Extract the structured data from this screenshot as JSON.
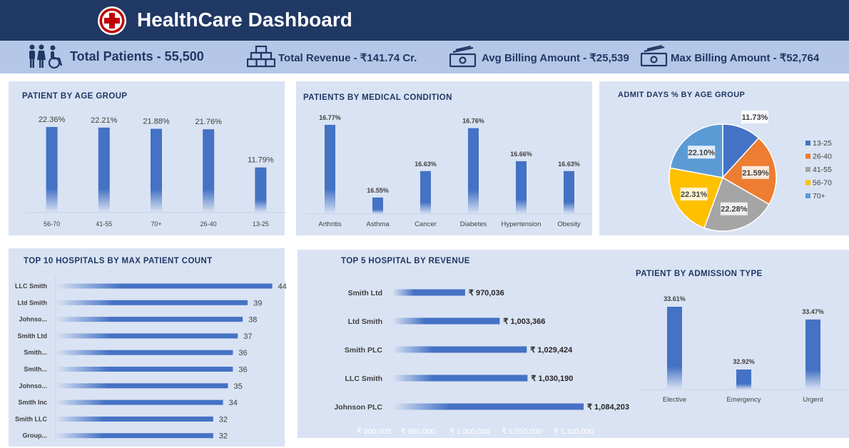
{
  "header": {
    "title": "HealthCare Dashboard",
    "kpis": [
      {
        "icon": "patients-icon",
        "label": "Total Patients  - 55,500"
      },
      {
        "icon": "revenue-icon",
        "label": "Total Revenue   -  ₹141.74 Cr."
      },
      {
        "icon": "billing-icon",
        "label": "Avg Billing Amount - ₹25,539"
      },
      {
        "icon": "max-billing-icon",
        "label": "Max Billing Amount - ₹52,764"
      }
    ]
  },
  "colors": {
    "header": "#1f3864",
    "kpi_band": "#b4c7e7",
    "panel": "#dae3f3",
    "bar": "#4472c4"
  },
  "panels": {
    "age_group": "PATIENT BY AGE GROUP",
    "medical": "PATIENTS BY MEDICAL CONDITION",
    "admit": "ADMIT DAYS % BY AGE GROUP",
    "hospitals": "TOP 10 HOSPITALS BY MAX PATIENT COUNT",
    "revenue": "TOP 5 HOSPITAL BY REVENUE",
    "admission": "PATIENT BY ADMISSION TYPE"
  },
  "chart_data": [
    {
      "id": "age",
      "type": "bar",
      "title": "PATIENT BY AGE GROUP",
      "categories": [
        "56-70",
        "41-55",
        "70+",
        "26-40",
        "13-25"
      ],
      "values": [
        22.36,
        22.21,
        21.88,
        21.76,
        11.79
      ],
      "labels": [
        "22.36%",
        "22.21%",
        "21.88%",
        "21.76%",
        "11.79%"
      ]
    },
    {
      "id": "medical",
      "type": "bar",
      "title": "PATIENTS BY MEDICAL CONDITION",
      "categories": [
        "Arthritis",
        "Asthma",
        "Cancer",
        "Diabetes",
        "Hypertension",
        "Obesity"
      ],
      "values": [
        16.77,
        16.55,
        16.63,
        16.76,
        16.66,
        16.63
      ],
      "labels": [
        "16.77%",
        "16.55%",
        "16.63%",
        "16.76%",
        "16.66%",
        "16.63%"
      ]
    },
    {
      "id": "admit",
      "type": "pie",
      "title": "ADMIT DAYS % BY AGE GROUP",
      "categories": [
        "13-25",
        "26-40",
        "41-55",
        "56-70",
        "70+"
      ],
      "values": [
        11.73,
        21.59,
        22.28,
        22.31,
        22.1
      ],
      "labels": [
        "11.73%",
        "21.59%",
        "22.28%",
        "22.31%",
        "22.10%"
      ],
      "colors": [
        "#4472c4",
        "#ed7d31",
        "#a5a5a5",
        "#ffc000",
        "#5b9bd5"
      ],
      "legend": "right"
    },
    {
      "id": "hospitals",
      "type": "bar",
      "orientation": "horizontal",
      "title": "TOP 10 HOSPITALS BY MAX PATIENT COUNT",
      "categories": [
        "LLC Smith",
        "Ltd Smith",
        "Johnso...",
        "Smith Ltd",
        "Smith...",
        "Smith...",
        "Johnso...",
        "Smith Inc",
        "Smith LLC",
        "Group..."
      ],
      "values": [
        44,
        39,
        38,
        37,
        36,
        36,
        35,
        34,
        32,
        32
      ],
      "labels": [
        "44",
        "39",
        "38",
        "37",
        "36",
        "36",
        "35",
        "34",
        "32",
        "32"
      ]
    },
    {
      "id": "revenue",
      "type": "bar",
      "orientation": "horizontal",
      "title": "TOP 5 HOSPITAL BY REVENUE",
      "categories": [
        "Smith Ltd",
        "Ltd Smith",
        "Smith PLC",
        "LLC Smith",
        "Johnson PLC"
      ],
      "values": [
        970036,
        1003366,
        1029424,
        1030190,
        1084203
      ],
      "labels": [
        "₹ 970,036",
        "₹ 1,003,366",
        "₹ 1,029,424",
        "₹ 1,030,190",
        "₹ 1,084,203"
      ],
      "xlim": [
        900000,
        1100000
      ],
      "xticks": [
        900000,
        950000,
        1000000,
        1050000,
        1100000
      ],
      "xtick_labels": [
        "₹ 900,000",
        "₹ 950,000",
        "₹ 1,000,000",
        "₹ 1,050,000",
        "₹ 1,100,000"
      ]
    },
    {
      "id": "admission",
      "type": "bar",
      "title": "PATIENT BY ADMISSION TYPE",
      "categories": [
        "Elective",
        "Emergency",
        "Urgent"
      ],
      "values": [
        33.61,
        32.92,
        33.47
      ],
      "labels": [
        "33.61%",
        "32.92%",
        "33.47%"
      ]
    }
  ]
}
